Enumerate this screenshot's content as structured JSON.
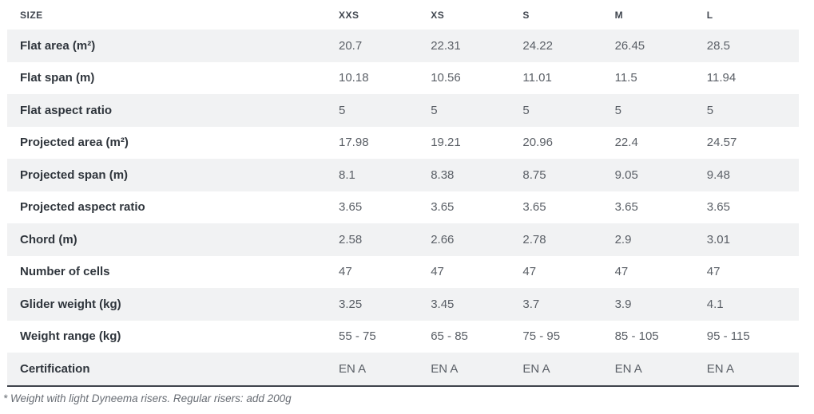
{
  "chart_data": {
    "type": "table",
    "header": {
      "size_label": "SIZE",
      "columns": [
        "XXS",
        "XS",
        "S",
        "M",
        "L"
      ]
    },
    "rows": [
      {
        "label": "Flat area (m²)",
        "values": [
          "20.7",
          "22.31",
          "24.22",
          "26.45",
          "28.5"
        ]
      },
      {
        "label": "Flat span (m)",
        "values": [
          "10.18",
          "10.56",
          "11.01",
          "11.5",
          "11.94"
        ]
      },
      {
        "label": "Flat aspect ratio",
        "values": [
          "5",
          "5",
          "5",
          "5",
          "5"
        ]
      },
      {
        "label": "Projected area (m²)",
        "values": [
          "17.98",
          "19.21",
          "20.96",
          "22.4",
          "24.57"
        ]
      },
      {
        "label": "Projected span (m)",
        "values": [
          "8.1",
          "8.38",
          "8.75",
          "9.05",
          "9.48"
        ]
      },
      {
        "label": "Projected aspect ratio",
        "values": [
          "3.65",
          "3.65",
          "3.65",
          "3.65",
          "3.65"
        ]
      },
      {
        "label": "Chord (m)",
        "values": [
          "2.58",
          "2.66",
          "2.78",
          "2.9",
          "3.01"
        ]
      },
      {
        "label": "Number of cells",
        "values": [
          "47",
          "47",
          "47",
          "47",
          "47"
        ]
      },
      {
        "label": "Glider weight (kg)",
        "values": [
          "3.25",
          "3.45",
          "3.7",
          "3.9",
          "4.1"
        ]
      },
      {
        "label": "Weight range (kg)",
        "values": [
          "55 - 75",
          "65 - 85",
          "75 - 95",
          "85 - 105",
          "95 - 115"
        ]
      },
      {
        "label": "Certification",
        "values": [
          "EN A",
          "EN A",
          "EN A",
          "EN A",
          "EN A"
        ]
      }
    ],
    "footnote": "* Weight with light Dyneema risers. Regular risers: add 200g"
  },
  "colors": {
    "zebra_row_bg": "#f1f2f3",
    "header_text": "#414750",
    "label_text": "#2f353c",
    "value_text": "#5a5f66",
    "bottom_border": "#3e434b",
    "footnote_text": "#686d74",
    "background": "#ffffff"
  }
}
